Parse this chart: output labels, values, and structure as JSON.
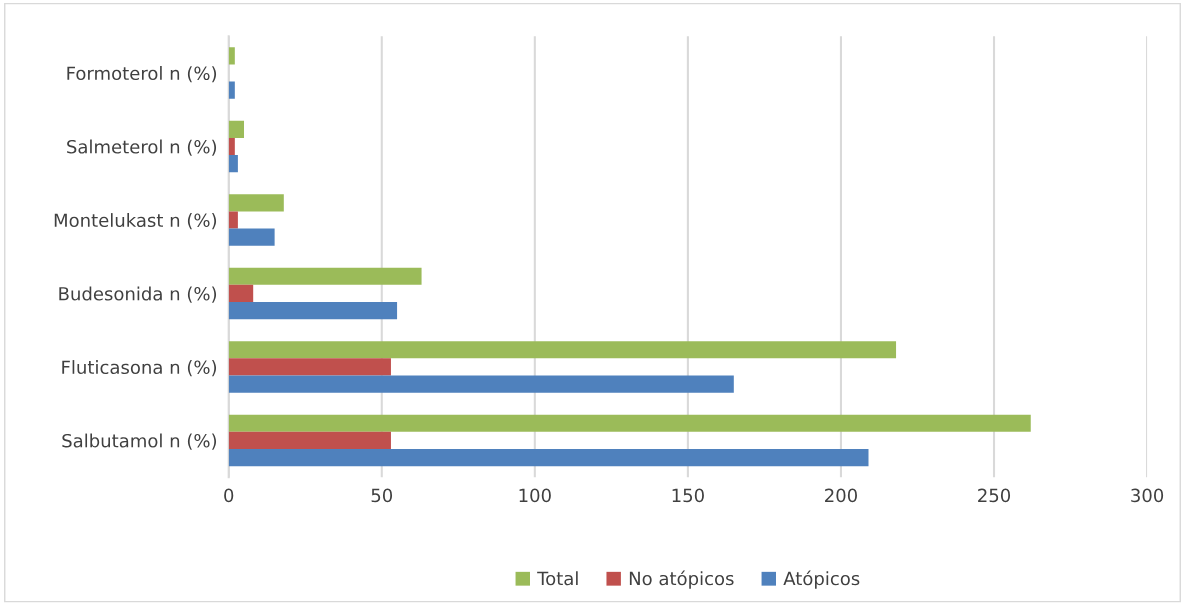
{
  "chart_data": {
    "type": "bar",
    "orientation": "horizontal",
    "categories": [
      "Formoterol n (%)",
      "Salmeterol n (%)",
      "Montelukast n (%)",
      "Budesonida n (%)",
      "Fluticasona n (%)",
      "Salbutamol n (%)"
    ],
    "series": [
      {
        "name": "Total",
        "color": "#9bbb59",
        "values": [
          2,
          5,
          18,
          63,
          218,
          262
        ]
      },
      {
        "name": "No atópicos",
        "color": "#c0504d",
        "values": [
          0,
          2,
          3,
          8,
          53,
          53
        ]
      },
      {
        "name": "Atópicos",
        "color": "#4f81bd",
        "values": [
          2,
          3,
          15,
          55,
          165,
          209
        ]
      }
    ],
    "xlim": [
      0,
      300
    ],
    "xticks": [
      0,
      50,
      100,
      150,
      200,
      250,
      300
    ],
    "grid": "x",
    "legend": "bottom"
  }
}
